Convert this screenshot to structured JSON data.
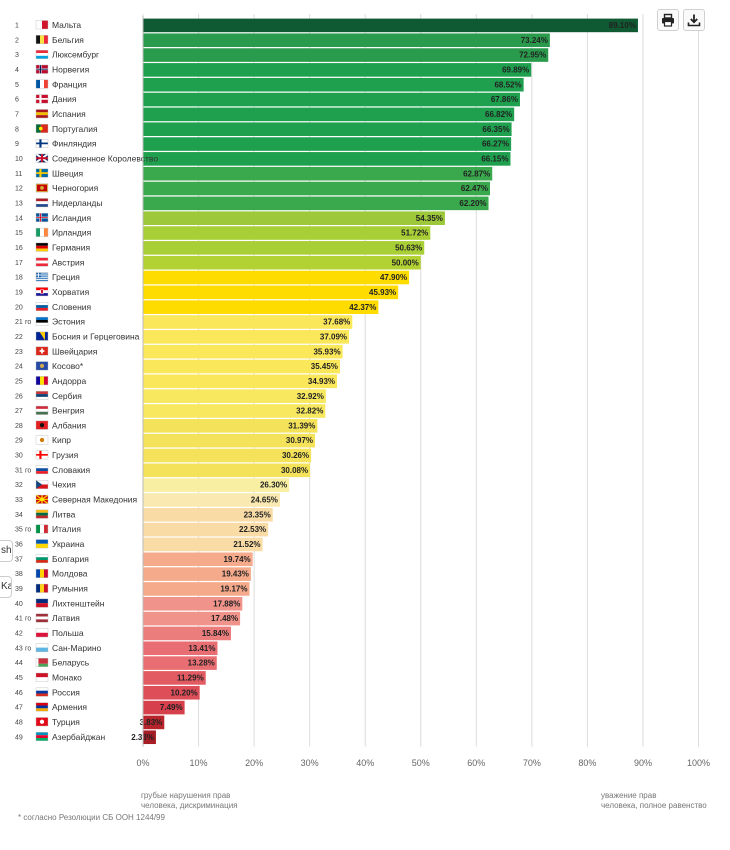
{
  "toolbar": {
    "print_label": "print",
    "download_label": "download"
  },
  "side_tabs": [
    "sh",
    "Ka"
  ],
  "chart_data": {
    "type": "bar",
    "orientation": "horizontal",
    "title": "",
    "xlabel": "",
    "ylabel": "",
    "xlim": [
      0,
      100
    ],
    "ticks": [
      0,
      10,
      20,
      30,
      40,
      50,
      60,
      70,
      80,
      90,
      100
    ],
    "tick_labels": [
      "0%",
      "10%",
      "20%",
      "30%",
      "40%",
      "50%",
      "60%",
      "70%",
      "80%",
      "90%",
      "100%"
    ],
    "grid": true,
    "categories": [
      {
        "rank": "1",
        "name": "Мальта",
        "value": 89.1,
        "label": "89.10%",
        "color": "#0f5a32",
        "flag": "mt"
      },
      {
        "rank": "2",
        "name": "Бельгия",
        "value": 73.24,
        "label": "73.24%",
        "color": "#2a9b4c",
        "flag": "be"
      },
      {
        "rank": "3",
        "name": "Люксембург",
        "value": 72.95,
        "label": "72.95%",
        "color": "#2a9b4c",
        "flag": "lu"
      },
      {
        "rank": "4",
        "name": "Норвегия",
        "value": 69.89,
        "label": "69.89%",
        "color": "#1ea04e",
        "flag": "no"
      },
      {
        "rank": "5",
        "name": "Франция",
        "value": 68.52,
        "label": "68.52%",
        "color": "#1ea04e",
        "flag": "fr"
      },
      {
        "rank": "6",
        "name": "Дания",
        "value": 67.86,
        "label": "67.86%",
        "color": "#1ea04e",
        "flag": "dk"
      },
      {
        "rank": "7",
        "name": "Испания",
        "value": 66.82,
        "label": "66.82%",
        "color": "#1ea04e",
        "flag": "es"
      },
      {
        "rank": "8",
        "name": "Португалия",
        "value": 66.35,
        "label": "66.35%",
        "color": "#1ea04e",
        "flag": "pt"
      },
      {
        "rank": "9",
        "name": "Финляндия",
        "value": 66.27,
        "label": "66.27%",
        "color": "#1ea04e",
        "flag": "fi"
      },
      {
        "rank": "10",
        "name": "Соединенное Королевство",
        "value": 66.15,
        "label": "66.15%",
        "color": "#1ea04e",
        "flag": "gb"
      },
      {
        "rank": "11",
        "name": "Швеция",
        "value": 62.87,
        "label": "62.87%",
        "color": "#3aa84c",
        "flag": "se"
      },
      {
        "rank": "12",
        "name": "Черногория",
        "value": 62.47,
        "label": "62.47%",
        "color": "#3aa84c",
        "flag": "me"
      },
      {
        "rank": "13",
        "name": "Нидерланды",
        "value": 62.2,
        "label": "62.20%",
        "color": "#3aa84c",
        "flag": "nl"
      },
      {
        "rank": "14",
        "name": "Исландия",
        "value": 54.35,
        "label": "54.35%",
        "color": "#9cc83a",
        "flag": "is"
      },
      {
        "rank": "15",
        "name": "Ирландия",
        "value": 51.72,
        "label": "51.72%",
        "color": "#a9cf37",
        "flag": "ie"
      },
      {
        "rank": "16",
        "name": "Германия",
        "value": 50.63,
        "label": "50.63%",
        "color": "#a9cf37",
        "flag": "de"
      },
      {
        "rank": "17",
        "name": "Австрия",
        "value": 50.0,
        "label": "50.00%",
        "color": "#b2d234",
        "flag": "at"
      },
      {
        "rank": "18",
        "name": "Греция",
        "value": 47.9,
        "label": "47.90%",
        "color": "#ffdc00",
        "flag": "gr"
      },
      {
        "rank": "19",
        "name": "Хорватия",
        "value": 45.93,
        "label": "45.93%",
        "color": "#ffdc00",
        "flag": "hr"
      },
      {
        "rank": "20",
        "name": "Словения",
        "value": 42.37,
        "label": "42.37%",
        "color": "#ffdc00",
        "flag": "si"
      },
      {
        "rank": "21",
        "name": "Эстония",
        "value": 37.68,
        "label": "37.68%",
        "color": "#fbe75a",
        "flag": "ee"
      },
      {
        "rank": "22",
        "name": "Босния и Герцеговина",
        "value": 37.09,
        "label": "37.09%",
        "color": "#fbe75a",
        "flag": "ba"
      },
      {
        "rank": "23",
        "name": "Швейцария",
        "value": 35.93,
        "label": "35.93%",
        "color": "#fbe75a",
        "flag": "ch"
      },
      {
        "rank": "24",
        "name": "Косово*",
        "value": 35.45,
        "label": "35.45%",
        "color": "#fbe75a",
        "flag": "xk"
      },
      {
        "rank": "25",
        "name": "Андорра",
        "value": 34.93,
        "label": "34.93%",
        "color": "#fbe75a",
        "flag": "ad"
      },
      {
        "rank": "26",
        "name": "Сербия",
        "value": 32.92,
        "label": "32.92%",
        "color": "#f7e860",
        "flag": "rs"
      },
      {
        "rank": "27",
        "name": "Венгрия",
        "value": 32.82,
        "label": "32.82%",
        "color": "#f7e860",
        "flag": "hu"
      },
      {
        "rank": "28",
        "name": "Албания",
        "value": 31.39,
        "label": "31.39%",
        "color": "#f4e35a",
        "flag": "al"
      },
      {
        "rank": "29",
        "name": "Кипр",
        "value": 30.97,
        "label": "30.97%",
        "color": "#f4e35a",
        "flag": "cy"
      },
      {
        "rank": "30",
        "name": "Грузия",
        "value": 30.26,
        "label": "30.26%",
        "color": "#f4e35a",
        "flag": "ge"
      },
      {
        "rank": "31",
        "name": "Словакия",
        "value": 30.08,
        "label": "30.08%",
        "color": "#f4e35a",
        "flag": "sk"
      },
      {
        "rank": "32",
        "name": "Чехия",
        "value": 26.3,
        "label": "26.30%",
        "color": "#f8efa2",
        "flag": "cz"
      },
      {
        "rank": "33",
        "name": "Северная Македония",
        "value": 24.65,
        "label": "24.65%",
        "color": "#fae9b0",
        "flag": "mk"
      },
      {
        "rank": "34",
        "name": "Литва",
        "value": 23.35,
        "label": "23.35%",
        "color": "#f9dca5",
        "flag": "lt"
      },
      {
        "rank": "35",
        "name": "Италия",
        "value": 22.53,
        "label": "22.53%",
        "color": "#f9dca5",
        "flag": "it"
      },
      {
        "rank": "36",
        "name": "Украина",
        "value": 21.52,
        "label": "21.52%",
        "color": "#f9dca5",
        "flag": "ua"
      },
      {
        "rank": "37",
        "name": "Болгария",
        "value": 19.74,
        "label": "19.74%",
        "color": "#f6aa8c",
        "flag": "bg"
      },
      {
        "rank": "38",
        "name": "Молдова",
        "value": 19.43,
        "label": "19.43%",
        "color": "#f6aa8c",
        "flag": "md"
      },
      {
        "rank": "39",
        "name": "Румыния",
        "value": 19.17,
        "label": "19.17%",
        "color": "#f6aa8c",
        "flag": "ro"
      },
      {
        "rank": "40",
        "name": "Лихтенштейн",
        "value": 17.88,
        "label": "17.88%",
        "color": "#f0938a",
        "flag": "li"
      },
      {
        "rank": "41",
        "name": "Латвия",
        "value": 17.48,
        "label": "17.48%",
        "color": "#f0938a",
        "flag": "lv"
      },
      {
        "rank": "42",
        "name": "Польша",
        "value": 15.84,
        "label": "15.84%",
        "color": "#eb7d7d",
        "flag": "pl"
      },
      {
        "rank": "43",
        "name": "Сан-Марино",
        "value": 13.41,
        "label": "13.41%",
        "color": "#e96e73",
        "flag": "sm"
      },
      {
        "rank": "44",
        "name": "Беларусь",
        "value": 13.28,
        "label": "13.28%",
        "color": "#e96e73",
        "flag": "by"
      },
      {
        "rank": "45",
        "name": "Монако",
        "value": 11.29,
        "label": "11.29%",
        "color": "#e25a62",
        "flag": "mc"
      },
      {
        "rank": "46",
        "name": "Россия",
        "value": 10.2,
        "label": "10.20%",
        "color": "#de4e58",
        "flag": "ru"
      },
      {
        "rank": "47",
        "name": "Армения",
        "value": 7.49,
        "label": "7.49%",
        "color": "#d6404c",
        "flag": "am"
      },
      {
        "rank": "48",
        "name": "Турция",
        "value": 3.83,
        "label": "3.83%",
        "color": "#b8242c",
        "flag": "tr"
      },
      {
        "rank": "49",
        "name": "Азербайджан",
        "value": 2.33,
        "label": "2.33%",
        "color": "#a61e25",
        "flag": "az"
      }
    ],
    "truncated_rank_suffix": {
      "21": "го",
      "31": "го",
      "35": "го",
      "41": "го",
      "43": "го"
    },
    "annotations": {
      "left_1": "грубые нарушения прав",
      "left_2": "человека, дискриминация",
      "right_1": "уважение прав",
      "right_2": "человека, полное равенство",
      "footnote": "* согласно Резолюции СБ ООН 1244/99"
    }
  }
}
